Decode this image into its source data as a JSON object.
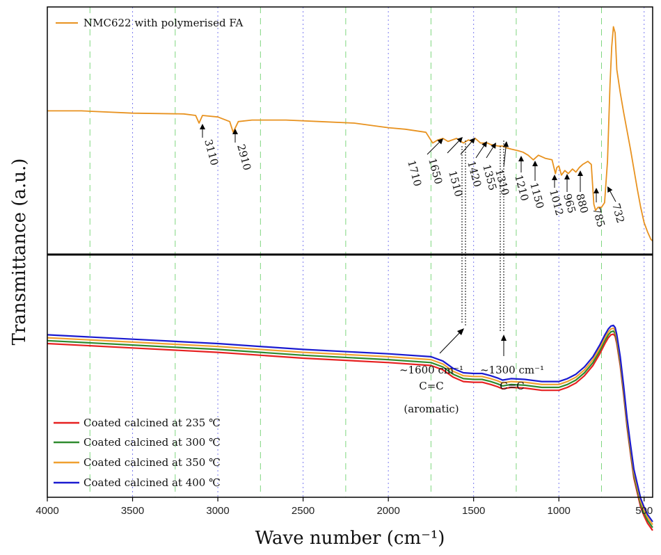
{
  "chart_data": {
    "type": "line",
    "xlabel": "Wave number (cm⁻¹)",
    "ylabel": "Transmittance (a.u.)",
    "xlim": [
      4000,
      450
    ],
    "x_ticks": [
      4000,
      3500,
      3000,
      2500,
      2000,
      1500,
      1000,
      500
    ],
    "grid_lines": [
      3750,
      3500,
      3250,
      3000,
      2750,
      2500,
      2250,
      2000,
      1750,
      1500,
      1250,
      1000,
      750,
      500
    ],
    "panels": [
      {
        "name": "top",
        "series": [
          {
            "name": "NMC622 with polymerised FA",
            "color": "#e8921f",
            "x": [
              4000,
              3800,
              3500,
              3200,
              3130,
              3110,
              3090,
              3000,
              2930,
              2910,
              2880,
              2800,
              2600,
              2400,
              2200,
              2000,
              1900,
              1780,
              1740,
              1710,
              1680,
              1650,
              1600,
              1560,
              1530,
              1510,
              1490,
              1460,
              1420,
              1400,
              1355,
              1330,
              1310,
              1280,
              1240,
              1210,
              1180,
              1150,
              1120,
              1080,
              1040,
              1020,
              1012,
              1000,
              985,
              965,
              945,
              920,
              900,
              880,
              860,
              830,
              810,
              795,
              785,
              770,
              750,
              732,
              715,
              700,
              690,
              680,
              670,
              660,
              640,
              620,
              600,
              580,
              560,
              540,
              520,
              500,
              480,
              460,
              450
            ],
            "y": [
              93,
              93,
              91.5,
              91,
              90,
              85,
              90,
              89,
              86,
              79,
              86,
              87,
              87,
              86,
              85,
              82,
              81,
              79,
              72,
              74,
              75,
              73,
              75,
              72,
              74,
              73,
              75,
              72,
              72,
              71,
              70,
              70,
              69,
              68,
              67,
              66,
              64,
              61,
              64,
              62,
              61,
              52,
              56,
              57,
              51,
              54,
              52,
              55,
              53,
              56,
              58,
              60,
              58,
              32,
              28,
              30,
              30,
              33,
              60,
              110,
              135,
              148,
              144,
              120,
              105,
              92,
              80,
              68,
              55,
              42,
              30,
              20,
              14,
              9,
              8
            ]
          }
        ],
        "annotations": [
          "3110",
          "2910",
          "1710",
          "1650",
          "1510",
          "1420",
          "1355",
          "1310",
          "1210",
          "1150",
          "1012",
          "965",
          "880",
          "785",
          "732"
        ]
      },
      {
        "name": "bottom",
        "series": [
          {
            "name": "Coated calcined at 235 ℃",
            "color": "#e62020",
            "x": [
              4000,
              3500,
              3000,
              2500,
              2000,
              1750,
              1680,
              1620,
              1560,
              1500,
              1450,
              1400,
              1360,
              1330,
              1280,
              1200,
              1100,
              1000,
              950,
              900,
              850,
              800,
              760,
              730,
              710,
              695,
              680,
              670,
              660,
              640,
              620,
              600,
              580,
              560,
              540,
              520,
              500,
              480,
              450
            ],
            "y": [
              60,
              57,
              54,
              50,
              47,
              45,
              42,
              37,
              34,
              33.5,
              33.5,
              32,
              30.5,
              29,
              30,
              29.5,
              28,
              28,
              30,
              33,
              38,
              45,
              53,
              60,
              64,
              66,
              66.5,
              65,
              60,
              45,
              25,
              3,
              -15,
              -32,
              -42,
              -52,
              -58,
              -63,
              -68
            ]
          },
          {
            "name": "Coated calcined at 300 ℃",
            "color": "#2e8b2e",
            "x": [
              4000,
              3500,
              3000,
              2500,
              2000,
              1750,
              1680,
              1620,
              1560,
              1500,
              1450,
              1400,
              1360,
              1330,
              1280,
              1200,
              1100,
              1000,
              950,
              900,
              850,
              800,
              760,
              730,
              710,
              695,
              680,
              670,
              660,
              640,
              620,
              600,
              580,
              560,
              540,
              520,
              500,
              480,
              450
            ],
            "y": [
              62,
              59,
              56,
              52,
              49,
              47,
              44,
              39,
              36,
              35.5,
              35.5,
              34,
              32.5,
              31,
              32,
              31.5,
              30,
              30,
              32,
              35,
              40,
              47,
              55,
              62,
              66,
              68,
              68.5,
              67,
              62,
              47,
              27,
              5,
              -13,
              -30,
              -40,
              -50,
              -56,
              -61,
              -66
            ]
          },
          {
            "name": "Coated calcined at 350 ℃",
            "color": "#f0a030",
            "x": [
              4000,
              3500,
              3000,
              2500,
              2000,
              1750,
              1680,
              1620,
              1560,
              1500,
              1450,
              1400,
              1360,
              1330,
              1280,
              1200,
              1100,
              1000,
              950,
              900,
              850,
              800,
              760,
              730,
              710,
              695,
              680,
              670,
              660,
              640,
              620,
              600,
              580,
              560,
              540,
              520,
              500,
              480,
              450
            ],
            "y": [
              64,
              61,
              58,
              54,
              51,
              49,
              46,
              41,
              38,
              37.5,
              37.5,
              36,
              34.5,
              33,
              34,
              33.5,
              32,
              32,
              34,
              37,
              42,
              49,
              57,
              64,
              68,
              70,
              70.5,
              69,
              64,
              49,
              29,
              7,
              -11,
              -28,
              -38,
              -48,
              -54,
              -59,
              -64
            ]
          },
          {
            "name": "Coated calcined at 400 ℃",
            "color": "#1a1ad0",
            "x": [
              4000,
              3500,
              3000,
              2500,
              2000,
              1750,
              1680,
              1620,
              1560,
              1500,
              1450,
              1400,
              1360,
              1330,
              1280,
              1200,
              1100,
              1000,
              950,
              900,
              850,
              800,
              760,
              730,
              710,
              695,
              680,
              670,
              660,
              640,
              620,
              600,
              580,
              560,
              540,
              520,
              500,
              480,
              450
            ],
            "y": [
              66,
              63,
              60,
              56,
              53,
              51,
              48,
              43,
              40,
              39.5,
              39.5,
              38,
              36.5,
              35,
              36,
              35.5,
              34,
              34,
              36,
              39,
              44,
              51,
              59,
              66,
              70,
              72,
              72.5,
              71,
              66,
              51,
              31,
              9,
              -9,
              -26,
              -36,
              -46,
              -52,
              -57,
              -62
            ]
          }
        ],
        "annotations": [
          {
            "lines": [
              "~1600 cm⁻¹",
              "C=C",
              "(aromatic)"
            ]
          },
          {
            "lines": [
              "~1300 cm⁻¹",
              "C=C"
            ]
          }
        ]
      }
    ]
  }
}
